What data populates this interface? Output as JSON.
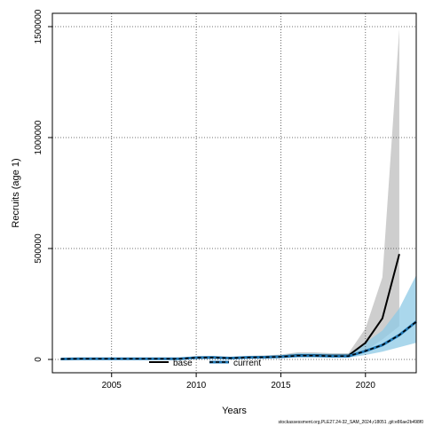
{
  "chart_data": {
    "type": "line",
    "title": "",
    "xlabel": "Years",
    "ylabel": "Recruits (age 1)",
    "xlim": [
      2001.5,
      2023
    ],
    "ylim": [
      -60000,
      1560000
    ],
    "xticks": [
      2005,
      2010,
      2015,
      2020
    ],
    "yticks": [
      0,
      500000,
      1000000,
      1500000
    ],
    "grid": true,
    "legend_position": "bottom-center",
    "series": [
      {
        "name": "base",
        "color": "#000000",
        "band_color": "#bebebe",
        "line_style": "solid",
        "x": [
          2002,
          2003,
          2004,
          2005,
          2006,
          2007,
          2008,
          2009,
          2010,
          2011,
          2012,
          2013,
          2014,
          2015,
          2016,
          2017,
          2018,
          2019,
          2020,
          2021,
          2022
        ],
        "values": [
          2000,
          3000,
          4000,
          3000,
          3000,
          3000,
          3000,
          3000,
          9000,
          10000,
          6000,
          10000,
          11000,
          14000,
          20000,
          20000,
          18000,
          18000,
          75000,
          185000,
          475000
        ],
        "lower": [
          0,
          0,
          0,
          0,
          0,
          0,
          0,
          0,
          3000,
          4000,
          2000,
          5000,
          6000,
          8000,
          12000,
          12000,
          10000,
          10000,
          40000,
          90000,
          150000
        ],
        "upper": [
          5000,
          6000,
          9000,
          6000,
          6000,
          6000,
          6000,
          6000,
          15000,
          16000,
          10000,
          16000,
          18000,
          22000,
          32000,
          32000,
          28000,
          28000,
          140000,
          370000,
          1490000
        ]
      },
      {
        "name": "current",
        "color": "#1f77b4",
        "band_color": "#8ecae6",
        "line_style": "dashed",
        "x": [
          2002,
          2003,
          2004,
          2005,
          2006,
          2007,
          2008,
          2009,
          2010,
          2011,
          2012,
          2013,
          2014,
          2015,
          2016,
          2017,
          2018,
          2019,
          2020,
          2021,
          2022,
          2023
        ],
        "values": [
          2000,
          3000,
          3000,
          3000,
          3000,
          3000,
          3000,
          3000,
          8000,
          9000,
          6000,
          9000,
          10000,
          12000,
          17000,
          17000,
          15000,
          15000,
          38000,
          65000,
          110000,
          170000
        ],
        "lower": [
          0,
          0,
          0,
          0,
          0,
          0,
          0,
          0,
          3000,
          4000,
          2000,
          4000,
          5000,
          6000,
          9000,
          9000,
          8000,
          8000,
          20000,
          35000,
          55000,
          75000
        ],
        "upper": [
          5000,
          6000,
          6000,
          6000,
          6000,
          6000,
          6000,
          6000,
          14000,
          15000,
          10000,
          15000,
          16000,
          20000,
          28000,
          28000,
          25000,
          25000,
          75000,
          130000,
          230000,
          380000
        ]
      }
    ]
  },
  "footer": "stockassessment.org,PLE27.24-32_SAM_2024,r18051 ,git:e86ae2b498f0"
}
